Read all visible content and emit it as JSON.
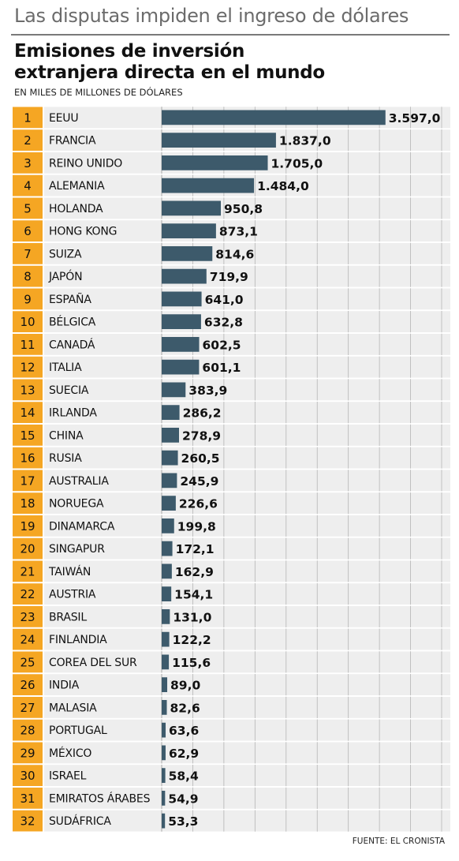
{
  "header": {
    "kicker": "Las disputas impiden el ingreso de dólares",
    "title_line1": "Emisiones de inversión",
    "title_line2": "extranjera directa en el mundo",
    "subtitle": "EN MILES DE MILLONES DE DÓLARES"
  },
  "footer": {
    "source": "FUENTE: EL CRONISTA"
  },
  "colors": {
    "bar": "#3d5a6b",
    "rank_cell": "#f5a623",
    "row_bg": "#eeeeee",
    "grid": "#b5b5b5"
  },
  "chart_data": {
    "type": "bar",
    "orientation": "horizontal",
    "title": "Emisiones de inversión extranjera directa en el mundo",
    "unit": "EN MILES DE MILLONES DE DÓLARES",
    "ranks": [
      "1",
      "2",
      "3",
      "4",
      "5",
      "6",
      "7",
      "8",
      "9",
      "10",
      "11",
      "12",
      "13",
      "14",
      "15",
      "16",
      "17",
      "18",
      "19",
      "20",
      "21",
      "22",
      "23",
      "24",
      "25",
      "26",
      "27",
      "28",
      "29",
      "30",
      "31",
      "32"
    ],
    "categories": [
      "EEUU",
      "FRANCIA",
      "REINO UNIDO",
      "ALEMANIA",
      "HOLANDA",
      "HONG KONG",
      "SUIZA",
      "JAPÓN",
      "ESPAÑA",
      "BÉLGICA",
      "CANADÁ",
      "ITALIA",
      "SUECIA",
      "IRLANDA",
      "CHINA",
      "RUSIA",
      "AUSTRALIA",
      "NORUEGA",
      "DINAMARCA",
      "SINGAPUR",
      "TAIWÁN",
      "AUSTRIA",
      "BRASIL",
      "FINLANDIA",
      "COREA DEL SUR",
      "INDIA",
      "MALASIA",
      "PORTUGAL",
      "MÉXICO",
      "ISRAEL",
      "EMIRATOS ÁRABES",
      "SUDÁFRICA"
    ],
    "values": [
      3597.0,
      1837.0,
      1705.0,
      1484.0,
      950.8,
      873.1,
      814.6,
      719.9,
      641.0,
      632.8,
      602.5,
      601.1,
      383.9,
      286.2,
      278.9,
      260.5,
      245.9,
      226.6,
      199.8,
      172.1,
      162.9,
      154.1,
      131.0,
      122.2,
      115.6,
      89.0,
      82.6,
      63.6,
      62.9,
      58.4,
      54.9,
      53.3
    ],
    "value_labels": [
      "3.597,0",
      "1.837,0",
      "1.705,0",
      "1.484,0",
      "950,8",
      "873,1",
      "814,6",
      "719,9",
      "641,0",
      "632,8",
      "602,5",
      "601,1",
      "383,9",
      "286,2",
      "278,9",
      "260,5",
      "245,9",
      "226,6",
      "199,8",
      "172,1",
      "162,9",
      "154,1",
      "131,0",
      "122,2",
      "115,6",
      "89,0",
      "82,6",
      "63,6",
      "62,9",
      "58,4",
      "54,9",
      "53,3"
    ],
    "xlim": [
      0,
      4500
    ],
    "grid": true,
    "legend": "none"
  }
}
